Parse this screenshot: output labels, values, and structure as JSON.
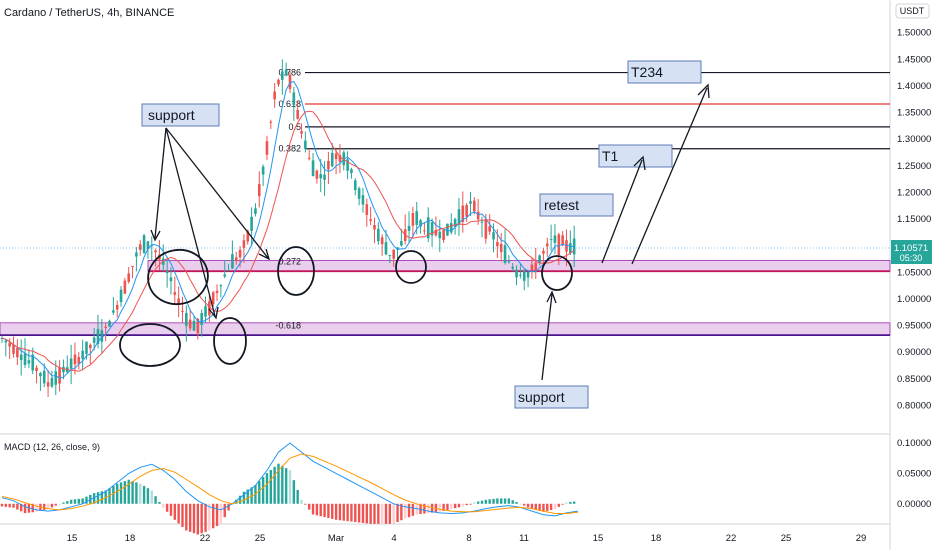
{
  "chart_data": {
    "type": "candlestick",
    "title": "Cardano / TetherUS, 4h, BINANCE",
    "currency": "USDT",
    "price_axis": {
      "ticks": [
        "1.50000",
        "1.45000",
        "1.40000",
        "1.35000",
        "1.30000",
        "1.25000",
        "1.20000",
        "1.15000",
        "1.10000",
        "1.05000",
        "1.00000",
        "0.95000",
        "0.90000",
        "0.85000",
        "0.80000"
      ],
      "range": [
        0.75,
        1.52
      ]
    },
    "last_price": "1.10571",
    "countdown": "05:30",
    "date_axis": [
      "15",
      "18",
      "22",
      "25",
      "Mar",
      "4",
      "8",
      "11",
      "15",
      "18",
      "22",
      "25",
      "29"
    ],
    "price_path": [
      [
        0.915,
        0.935
      ],
      [
        0.9,
        0.92
      ],
      [
        0.87,
        0.905
      ],
      [
        0.84,
        0.9
      ],
      [
        0.82,
        0.86
      ],
      [
        0.845,
        0.87
      ],
      [
        0.86,
        0.89
      ],
      [
        0.88,
        0.91
      ],
      [
        0.9,
        0.935
      ],
      [
        0.925,
        0.955
      ],
      [
        0.95,
        1.02
      ],
      [
        1.02,
        1.06
      ],
      [
        1.06,
        1.13
      ],
      [
        1.12,
        1.09
      ],
      [
        1.09,
        1.05
      ],
      [
        1.04,
        1.0
      ],
      [
        0.99,
        0.94
      ],
      [
        0.93,
        0.96
      ],
      [
        0.96,
        1.0
      ],
      [
        1.0,
        1.05
      ],
      [
        1.05,
        1.08
      ],
      [
        1.08,
        1.1
      ],
      [
        1.1,
        1.2
      ],
      [
        1.2,
        1.32
      ],
      [
        1.32,
        1.49
      ],
      [
        1.47,
        1.38
      ],
      [
        1.36,
        1.3
      ],
      [
        1.3,
        1.2
      ],
      [
        1.19,
        1.26
      ],
      [
        1.26,
        1.28
      ],
      [
        1.28,
        1.25
      ],
      [
        1.24,
        1.18
      ],
      [
        1.18,
        1.14
      ],
      [
        1.13,
        1.1
      ],
      [
        1.1,
        1.06
      ],
      [
        1.06,
        1.15
      ],
      [
        1.15,
        1.16
      ],
      [
        1.14,
        1.12
      ],
      [
        1.12,
        1.13
      ],
      [
        1.13,
        1.12
      ],
      [
        1.11,
        1.2
      ],
      [
        1.2,
        1.16
      ],
      [
        1.16,
        1.13
      ],
      [
        1.13,
        1.1
      ],
      [
        1.1,
        1.06
      ],
      [
        1.06,
        1.04
      ],
      [
        1.04,
        1.05
      ],
      [
        1.05,
        1.1
      ],
      [
        1.1,
        1.12
      ],
      [
        1.12,
        1.09
      ],
      [
        1.09,
        1.1
      ]
    ],
    "fib_levels": [
      {
        "label": "0.786",
        "value": 1.425,
        "color": "#131722"
      },
      {
        "label": "0.618",
        "value": 1.366,
        "color": "#e53935"
      },
      {
        "label": "0.5",
        "value": 1.323,
        "color": "#131722"
      },
      {
        "label": "0.382",
        "value": 1.282,
        "color": "#131722"
      },
      {
        "label": "0.272",
        "value": 1.07,
        "color": "#131722"
      },
      {
        "label": "-0.618",
        "value": 0.95,
        "color": "#131722"
      }
    ],
    "zones": [
      {
        "top": 1.072,
        "bottom": 1.052
      },
      {
        "top": 0.955,
        "bottom": 0.932
      }
    ],
    "annotations": {
      "support_left": "support",
      "support_right": "support",
      "retest": "retest",
      "t1": "T1",
      "t234": "T234"
    },
    "macd": {
      "label": "MACD (12, 26, close, 9)",
      "ticks": [
        "0.10000",
        "0.05000",
        "0.00000"
      ],
      "range": [
        -0.03,
        0.105
      ],
      "macd_line": [
        0.01,
        0.005,
        -0.005,
        -0.01,
        -0.012,
        -0.01,
        -0.005,
        0.0,
        0.01,
        0.02,
        0.035,
        0.05,
        0.06,
        0.065,
        0.055,
        0.04,
        0.02,
        0.005,
        -0.005,
        -0.01,
        0.0,
        0.015,
        0.03,
        0.055,
        0.085,
        0.1,
        0.085,
        0.07,
        0.06,
        0.05,
        0.04,
        0.03,
        0.02,
        0.01,
        0.0,
        -0.005,
        -0.008,
        -0.012,
        -0.015,
        -0.016,
        -0.015,
        -0.012,
        -0.008,
        -0.005,
        -0.003,
        -0.006,
        -0.012,
        -0.018,
        -0.02,
        -0.015,
        -0.012
      ],
      "signal_line": [
        0.012,
        0.008,
        0.002,
        -0.004,
        -0.008,
        -0.01,
        -0.008,
        -0.004,
        0.002,
        0.01,
        0.02,
        0.032,
        0.045,
        0.055,
        0.058,
        0.052,
        0.04,
        0.028,
        0.015,
        0.005,
        0.0,
        0.006,
        0.016,
        0.032,
        0.055,
        0.075,
        0.082,
        0.078,
        0.07,
        0.062,
        0.053,
        0.044,
        0.035,
        0.025,
        0.015,
        0.006,
        0.0,
        -0.005,
        -0.009,
        -0.012,
        -0.013,
        -0.013,
        -0.011,
        -0.009,
        -0.007,
        -0.006,
        -0.008,
        -0.012,
        -0.016,
        -0.016,
        -0.014
      ]
    },
    "colors": {
      "up": "#26a69a",
      "down": "#ef5350",
      "ma_fast": "#2196f3",
      "ma_slow": "#ef5350",
      "zone": "#e1bee7",
      "label_box": "#d6e2f3"
    }
  }
}
